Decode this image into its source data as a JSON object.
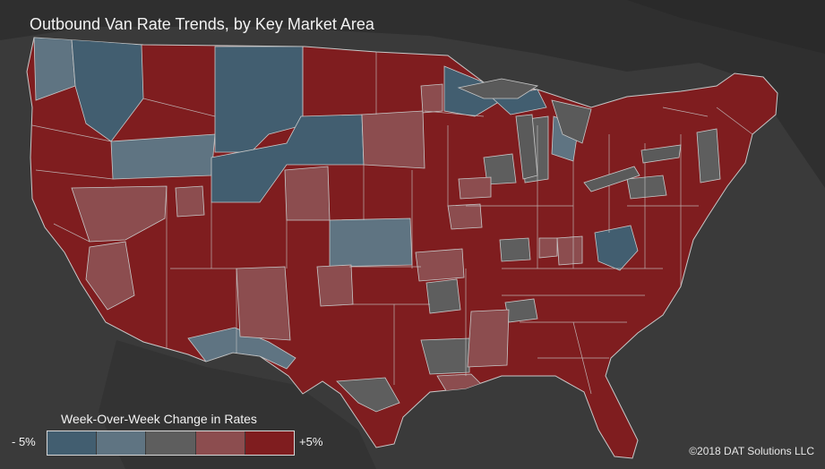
{
  "title": "Outbound Van Rate Trends, by Key Market Area",
  "legend": {
    "label": "Week-Over-Week Change in Rates",
    "min_label": "- 5%",
    "max_label": "+5%",
    "colors": [
      "#425e70",
      "#5f7482",
      "#5e5e5e",
      "#8c4d4f",
      "#7f1d1f"
    ]
  },
  "copyright": "©2018 DAT Solutions LLC",
  "colors": {
    "background": "#3a3a3a",
    "land_dark": "#2f2f2f",
    "water": "#5a5a5a",
    "border": "#c8c8c8",
    "strong_up": "#7f1d1f",
    "mild_up": "#8c4d4f",
    "neutral": "#5e5e5e",
    "mild_down": "#5f7482",
    "strong_down": "#425e70"
  }
}
